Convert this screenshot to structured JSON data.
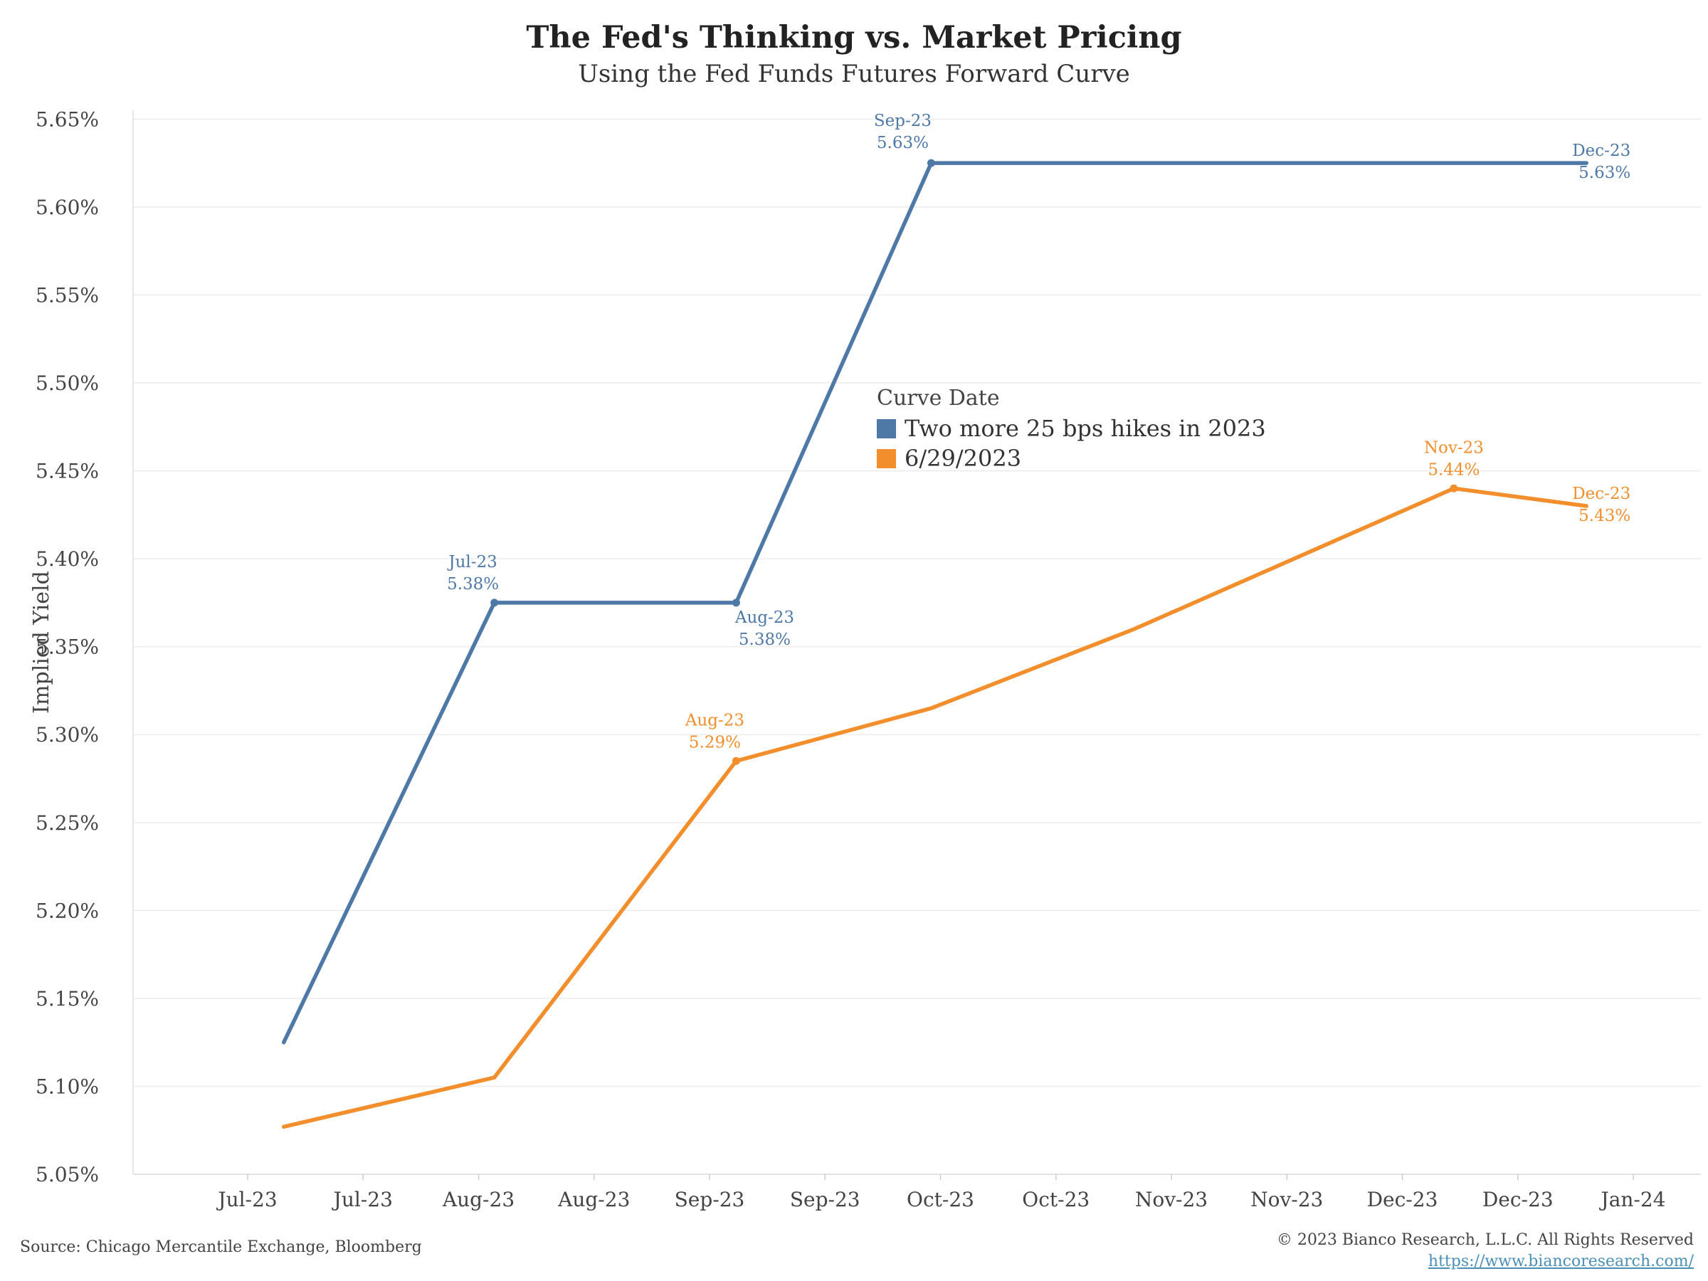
{
  "title": "The Fed's Thinking vs. Market Pricing",
  "subtitle": "Using the Fed Funds Futures Forward Curve",
  "legend": {
    "title": "Curve Date",
    "items": [
      {
        "label": "Two more 25 bps hikes in 2023",
        "color": "#4e79a7"
      },
      {
        "label": "6/29/2023",
        "color": "#f28e2b"
      }
    ]
  },
  "footer": {
    "source": "Source: Chicago Mercantile Exchange, Bloomberg",
    "copyright": "© 2023 Bianco Research, L.L.C. All Rights Reserved",
    "url": "https://www.biancoresearch.com/"
  },
  "chart_data": {
    "type": "line",
    "ylabel": "Implied Yield",
    "xlabel": "",
    "ylim": [
      5.05,
      5.655
    ],
    "grid": "horizontal",
    "legend_position": "center",
    "x_tick_labels": [
      "Jul-23",
      "Jul-23",
      "Aug-23",
      "Aug-23",
      "Sep-23",
      "Sep-23",
      "Oct-23",
      "Oct-23",
      "Nov-23",
      "Nov-23",
      "Dec-23",
      "Dec-23",
      "Jan-24"
    ],
    "y_tick_labels": [
      "5.05%",
      "5.10%",
      "5.15%",
      "5.20%",
      "5.25%",
      "5.30%",
      "5.35%",
      "5.40%",
      "5.45%",
      "5.50%",
      "5.55%",
      "5.60%",
      "5.65%"
    ],
    "series": [
      {
        "name": "Two more 25 bps hikes in 2023",
        "color": "#4e79a7",
        "x": [
          "2023-06-29",
          "2023-07-26",
          "2023-08-26",
          "2023-09-20",
          "2023-12-13"
        ],
        "y": [
          5.125,
          5.375,
          5.375,
          5.625,
          5.625
        ],
        "labels": [
          {
            "index": 1,
            "text": [
              "Jul-23",
              "5.38%"
            ],
            "pos": "above"
          },
          {
            "index": 2,
            "text": [
              "Aug-23",
              "5.38%"
            ],
            "pos": "below"
          },
          {
            "index": 3,
            "text": [
              "Sep-23",
              "5.63%"
            ],
            "pos": "above"
          },
          {
            "index": 4,
            "text": [
              "Dec-23",
              "5.63%"
            ],
            "pos": "right"
          }
        ]
      },
      {
        "name": "6/29/2023",
        "color": "#f28e2b",
        "x": [
          "2023-06-29",
          "2023-07-26",
          "2023-08-26",
          "2023-09-20",
          "2023-10-16",
          "2023-11-26",
          "2023-12-13"
        ],
        "y": [
          5.077,
          5.105,
          5.285,
          5.315,
          5.36,
          5.44,
          5.43
        ],
        "labels": [
          {
            "index": 2,
            "text": [
              "Aug-23",
              "5.29%"
            ],
            "pos": "above"
          },
          {
            "index": 5,
            "text": [
              "Nov-23",
              "5.44%"
            ],
            "pos": "above"
          },
          {
            "index": 6,
            "text": [
              "Dec-23",
              "5.43%"
            ],
            "pos": "right"
          }
        ]
      }
    ]
  }
}
